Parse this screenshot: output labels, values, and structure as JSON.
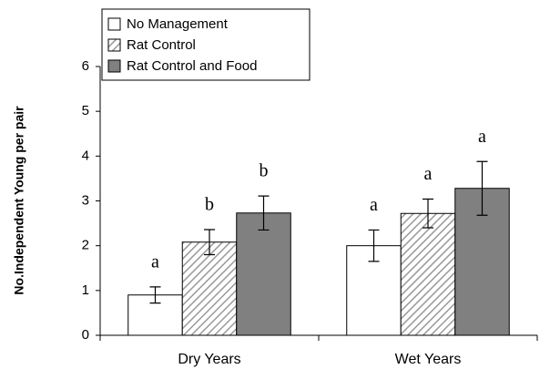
{
  "chart_data": {
    "type": "bar",
    "y_label": "No.Independent Young per pair",
    "categories": [
      "Dry Years",
      "Wet Years"
    ],
    "series": [
      {
        "name": "No Management",
        "color": "#ffffff",
        "hatch": false,
        "values": [
          0.9,
          2.0
        ],
        "errors": [
          0.18,
          0.35
        ],
        "letters": [
          "a",
          "a"
        ]
      },
      {
        "name": "Rat Control",
        "color": "#ffffff",
        "hatch": true,
        "values": [
          2.08,
          2.72
        ],
        "errors": [
          0.28,
          0.32
        ],
        "letters": [
          "b",
          "a"
        ]
      },
      {
        "name": "Rat Control and Food",
        "color": "#808080",
        "hatch": false,
        "values": [
          2.73,
          3.28
        ],
        "errors": [
          0.38,
          0.6
        ],
        "letters": [
          "b",
          "a"
        ]
      }
    ],
    "ylim": [
      0,
      6
    ],
    "yticks": [
      0,
      1,
      2,
      3,
      4,
      5,
      6
    ],
    "grid": false
  }
}
